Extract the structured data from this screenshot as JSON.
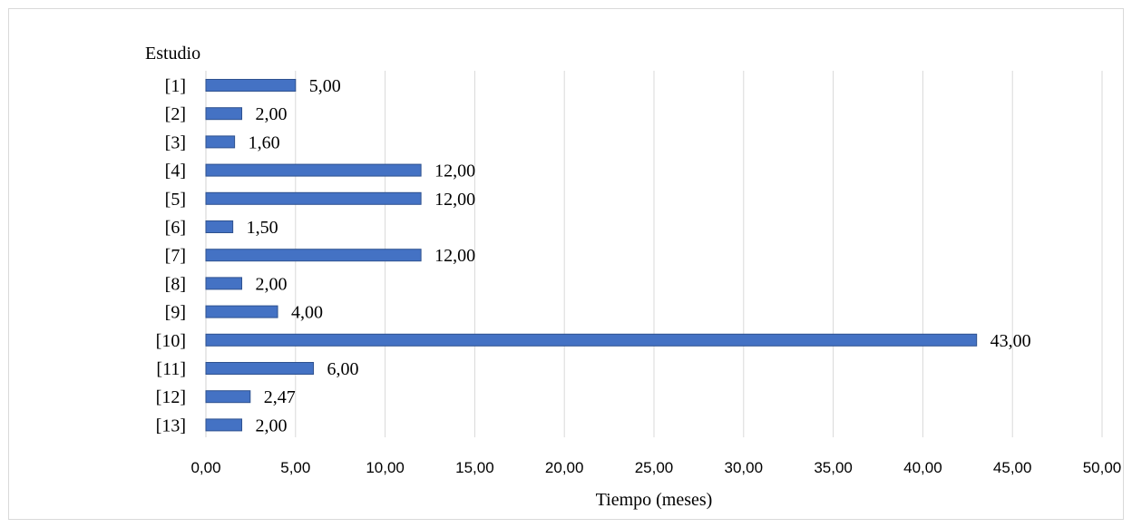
{
  "chart_data": {
    "type": "bar",
    "orientation": "horizontal",
    "categories": [
      "[1]",
      "[2]",
      "[3]",
      "[4]",
      "[5]",
      "[6]",
      "[7]",
      "[8]",
      "[9]",
      "[10]",
      "[11]",
      "[12]",
      "[13]"
    ],
    "values": [
      5.0,
      2.0,
      1.6,
      12.0,
      12.0,
      1.5,
      12.0,
      2.0,
      4.0,
      43.0,
      6.0,
      2.47,
      2.0
    ],
    "data_labels": [
      "5,00",
      "2,00",
      "1,60",
      "12,00",
      "12,00",
      "1,50",
      "12,00",
      "2,00",
      "4,00",
      "43,00",
      "6,00",
      "2,47",
      "2,00"
    ],
    "x_ticks": [
      "0,00",
      "5,00",
      "10,00",
      "15,00",
      "20,00",
      "25,00",
      "30,00",
      "35,00",
      "40,00",
      "45,00",
      "50,00"
    ],
    "xlim": [
      0,
      50
    ],
    "xlabel": "Tiempo (meses)",
    "ylabel": "Estudio",
    "title": "",
    "grid": "vertical",
    "legend": "none",
    "colors": {
      "bar_fill": "#4472c4",
      "bar_stroke": "#2f528f",
      "grid": "#d9d9d9",
      "frame": "#d9d9d9"
    }
  }
}
